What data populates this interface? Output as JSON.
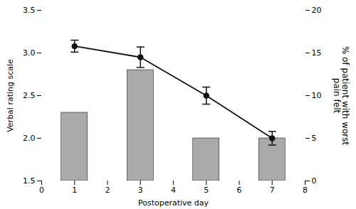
{
  "chart_data": {
    "type": "combo",
    "xlabel": "Postoperative day",
    "ylabel": "Verbal rating scale",
    "y2label": "% of patient with worst\npain felt",
    "x": [
      1,
      3,
      5,
      7
    ],
    "xlim": [
      0,
      8
    ],
    "xticks": [
      0,
      1,
      2,
      3,
      4,
      5,
      6,
      7,
      8
    ],
    "ylim": [
      1.5,
      3.5
    ],
    "yticks": [
      1.5,
      {
        "value": 2.0,
        "label": "2.0"
      },
      2.5,
      {
        "value": 3.0,
        "label": "3.0"
      },
      3.5
    ],
    "y2lim": [
      0,
      20
    ],
    "y2ticks": [
      0,
      5,
      10,
      15,
      20
    ],
    "series": [
      {
        "type": "bar",
        "axis": "y2",
        "color": "#aaaaaa",
        "values": [
          8,
          13,
          5,
          5
        ]
      },
      {
        "type": "line",
        "color": "#111111",
        "marker": "circle",
        "values": [
          3.08,
          2.95,
          2.5,
          2.0
        ],
        "error": [
          0.07,
          0.12,
          0.1,
          0.08
        ]
      }
    ]
  }
}
